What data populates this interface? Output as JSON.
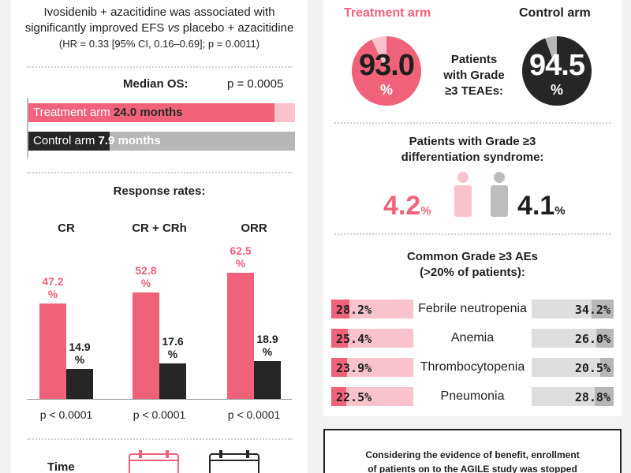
{
  "efs": {
    "line1": "Ivosidenib + azacitidine was associated with",
    "line2_a": "significantly improved EFS ",
    "line2_vs": "vs",
    "line2_b": " placebo + azacitidine",
    "line3": "(HR = 0.33 [95% CI, 0.16–0.69]; p = 0.0011)"
  },
  "os": {
    "title": "Median OS:",
    "pvalue": "p = 0.0005",
    "treatment_label": "Treatment arm ",
    "treatment_value": "24.0 months",
    "control_label": "Control arm ",
    "control_value": "7.9 months",
    "treatment_months": 24.0,
    "control_months": 7.9
  },
  "response": {
    "title": "Response rates:",
    "groups": [
      {
        "name": "CR",
        "treatment": "47.2",
        "control": "14.9",
        "p": "p < 0.0001"
      },
      {
        "name": "CR + CRh",
        "treatment": "52.8",
        "control": "17.6",
        "p": "p < 0.0001"
      },
      {
        "name": "ORR",
        "treatment": "62.5",
        "control": "18.9",
        "p": "p < 0.0001"
      }
    ],
    "unit": "%"
  },
  "time": {
    "label": "Time"
  },
  "teae": {
    "treatment_header": "Treatment arm",
    "control_header": "Control arm",
    "treatment_value": "93.0",
    "control_value": "94.5",
    "unit": "%",
    "label_line1": "Patients",
    "label_line2": "with Grade",
    "label_line3": "≥3 TEAEs:"
  },
  "diff": {
    "title_line1": "Patients with Grade ≥3",
    "title_line2": "differentiation syndrome:",
    "treatment_value": "4.2",
    "control_value": "4.1",
    "unit": "%"
  },
  "ae": {
    "title_line1": "Common Grade ≥3 AEs",
    "title_line2": "(>20% of patients):",
    "rows": [
      {
        "name": "Febrile neutropenia",
        "treatment": "28.2%",
        "control": "34.2%",
        "t": 28.2,
        "c": 34.2
      },
      {
        "name": "Anemia",
        "treatment": "25.4%",
        "control": "26.0%",
        "t": 25.4,
        "c": 26.0
      },
      {
        "name": "Thrombocytopenia",
        "treatment": "23.9%",
        "control": "20.5%",
        "t": 23.9,
        "c": 20.5
      },
      {
        "name": "Pneumonia",
        "treatment": "22.5%",
        "control": "28.8%",
        "t": 22.5,
        "c": 28.8
      }
    ]
  },
  "enrollment": {
    "line1": "Considering the evidence of benefit, enrollment",
    "line2": "of patients on to the AGILE study was stopped"
  },
  "colors": {
    "pink": "#f0627a",
    "light_pink": "#f9c3cd",
    "dark": "#262626",
    "grey": "#b7b7b7",
    "light_grey": "#dedede"
  }
}
